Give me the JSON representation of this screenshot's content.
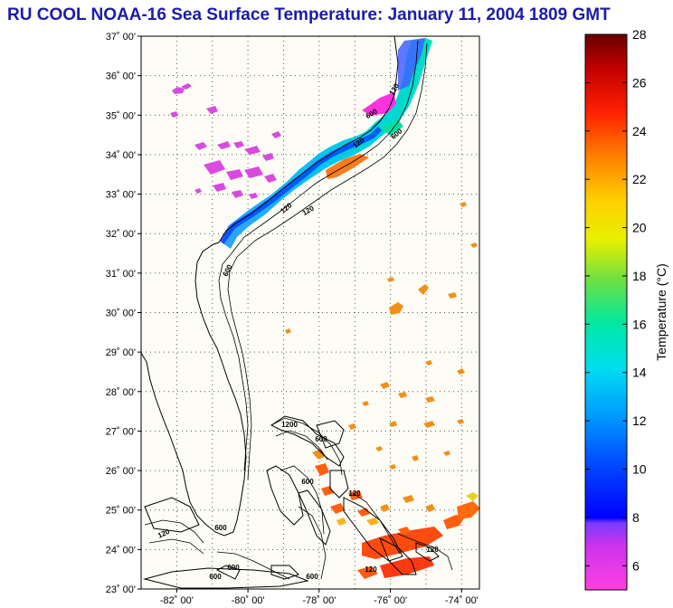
{
  "title": "RU COOL  NOAA-16  Sea Surface Temperature:  January 11, 2004 1809 GMT",
  "lat_labels": [
    "37˚ 00'",
    "36˚ 00'",
    "35˚ 00'",
    "34˚ 00'",
    "33˚ 00'",
    "32˚ 00'",
    "31˚ 00'",
    "30˚ 00'",
    "29˚ 00'",
    "28˚ 00'",
    "27˚ 00'",
    "26˚ 00'",
    "25˚ 00'",
    "24˚ 00'",
    "23˚ 00'"
  ],
  "lon_labels": [
    "-82˚ 00'",
    "-80˚ 00'",
    "-78˚ 00'",
    "-76˚ 00'",
    "-74˚ 00'"
  ],
  "colorbar": {
    "title": "Temperature (°C)",
    "tick_labels": [
      "28",
      "26",
      "24",
      "22",
      "20",
      "18",
      "16",
      "14",
      "12",
      "10",
      "8",
      "6"
    ],
    "range": [
      5,
      28
    ]
  },
  "contour_labels": [
    "120",
    "600",
    "120",
    "600",
    "120",
    "120",
    "600",
    "1200",
    "600",
    "600",
    "120",
    "600",
    "120",
    "600",
    "600",
    "120",
    "600",
    "120"
  ]
}
